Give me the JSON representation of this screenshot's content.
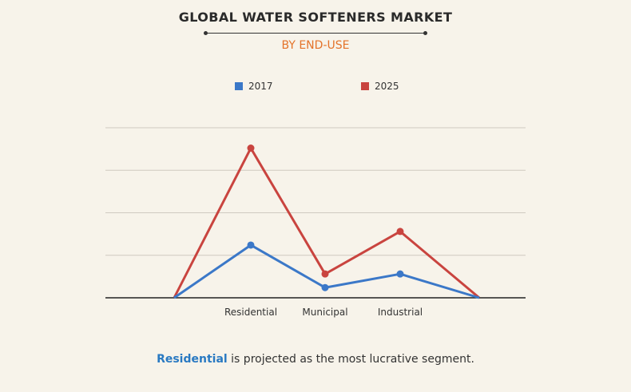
{
  "header": {
    "title": "GLOBAL WATER SOFTENERS MARKET",
    "subtitle": "BY END-USE"
  },
  "footer": {
    "highlight": "Residential",
    "rest": " is projected as the most lucrative segment."
  },
  "colors": {
    "s2017": "#3b78c8",
    "s2025": "#c9443f",
    "subtitle": "#e4732a",
    "highlight": "#2979c2"
  },
  "chart_data": {
    "type": "line",
    "title": "GLOBAL WATER SOFTENERS MARKET",
    "subtitle": "BY END-USE",
    "categories": [
      "",
      "Residential",
      "Municipal",
      "Industrial",
      ""
    ],
    "series": [
      {
        "name": "2017",
        "values": [
          0,
          31,
          6,
          14,
          0
        ]
      },
      {
        "name": "2025",
        "values": [
          0,
          88,
          14,
          39,
          0
        ]
      }
    ],
    "ylim": [
      0,
      100
    ],
    "grid": true,
    "legend": "top-center"
  }
}
